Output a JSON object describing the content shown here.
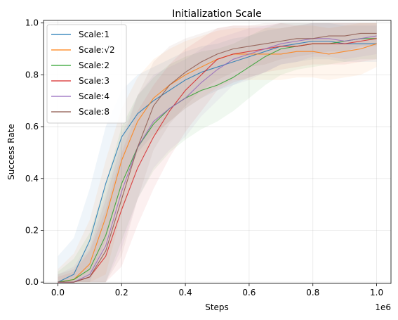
{
  "chart_data": {
    "type": "line",
    "title": "Initialization Scale",
    "xlabel": "Steps",
    "ylabel": "Success Rate",
    "x_offset_label": "1e6",
    "xlim": [
      -0.045,
      1.045
    ],
    "ylim": [
      -0.005,
      1.01
    ],
    "xticks": [
      0.0,
      0.2,
      0.4,
      0.6,
      0.8,
      1.0
    ],
    "xtick_labels": [
      "0.0",
      "0.2",
      "0.4",
      "0.6",
      "0.8",
      "1.0"
    ],
    "yticks": [
      0.0,
      0.2,
      0.4,
      0.6,
      0.8,
      1.0
    ],
    "ytick_labels": [
      "0.0",
      "0.2",
      "0.4",
      "0.6",
      "0.8",
      "1.0"
    ],
    "grid": true,
    "legend_position": "upper-left",
    "x": [
      0.0,
      0.05,
      0.1,
      0.15,
      0.2,
      0.25,
      0.3,
      0.35,
      0.4,
      0.45,
      0.5,
      0.55,
      0.6,
      0.65,
      0.7,
      0.75,
      0.8,
      0.85,
      0.9,
      0.95,
      1.0
    ],
    "series": [
      {
        "name": "Scale:1",
        "color": "#1f77b4",
        "values": [
          0.0,
          0.03,
          0.16,
          0.38,
          0.56,
          0.65,
          0.7,
          0.74,
          0.78,
          0.81,
          0.83,
          0.85,
          0.87,
          0.89,
          0.91,
          0.92,
          0.93,
          0.93,
          0.92,
          0.92,
          0.92
        ],
        "band": [
          0.1,
          0.14,
          0.2,
          0.22,
          0.18,
          0.15,
          0.13,
          0.12,
          0.11,
          0.1,
          0.09,
          0.09,
          0.08,
          0.08,
          0.07,
          0.07,
          0.07,
          0.07,
          0.07,
          0.07,
          0.07
        ]
      },
      {
        "name": "Scale:√2",
        "color": "#ff7f0e",
        "values": [
          0.0,
          0.01,
          0.07,
          0.25,
          0.47,
          0.62,
          0.71,
          0.76,
          0.8,
          0.83,
          0.86,
          0.88,
          0.88,
          0.88,
          0.88,
          0.89,
          0.89,
          0.88,
          0.89,
          0.9,
          0.92
        ],
        "band": [
          0.05,
          0.1,
          0.17,
          0.22,
          0.2,
          0.17,
          0.15,
          0.14,
          0.13,
          0.12,
          0.11,
          0.1,
          0.1,
          0.1,
          0.1,
          0.1,
          0.1,
          0.1,
          0.1,
          0.1,
          0.09
        ]
      },
      {
        "name": "Scale:2",
        "color": "#2ca02c",
        "values": [
          0.0,
          0.01,
          0.05,
          0.18,
          0.38,
          0.52,
          0.61,
          0.67,
          0.71,
          0.74,
          0.76,
          0.79,
          0.83,
          0.87,
          0.9,
          0.91,
          0.92,
          0.92,
          0.93,
          0.94,
          0.94
        ],
        "band": [
          0.04,
          0.08,
          0.14,
          0.2,
          0.22,
          0.2,
          0.18,
          0.17,
          0.16,
          0.15,
          0.14,
          0.13,
          0.12,
          0.11,
          0.1,
          0.09,
          0.09,
          0.08,
          0.08,
          0.08,
          0.08
        ]
      },
      {
        "name": "Scale:3",
        "color": "#d62728",
        "values": [
          0.0,
          0.0,
          0.02,
          0.1,
          0.28,
          0.44,
          0.56,
          0.66,
          0.74,
          0.8,
          0.86,
          0.88,
          0.89,
          0.9,
          0.91,
          0.91,
          0.92,
          0.92,
          0.92,
          0.93,
          0.94
        ],
        "band": [
          0.02,
          0.04,
          0.1,
          0.18,
          0.22,
          0.22,
          0.2,
          0.18,
          0.16,
          0.14,
          0.12,
          0.11,
          0.1,
          0.09,
          0.09,
          0.08,
          0.08,
          0.08,
          0.08,
          0.08,
          0.08
        ]
      },
      {
        "name": "Scale:4",
        "color": "#9467bd",
        "values": [
          0.0,
          0.0,
          0.03,
          0.14,
          0.35,
          0.52,
          0.62,
          0.67,
          0.71,
          0.77,
          0.82,
          0.86,
          0.88,
          0.9,
          0.92,
          0.93,
          0.94,
          0.94,
          0.93,
          0.94,
          0.95
        ],
        "band": [
          0.03,
          0.06,
          0.12,
          0.2,
          0.22,
          0.2,
          0.18,
          0.16,
          0.15,
          0.13,
          0.12,
          0.1,
          0.1,
          0.09,
          0.08,
          0.08,
          0.07,
          0.07,
          0.07,
          0.07,
          0.07
        ]
      },
      {
        "name": "Scale:8",
        "color": "#8c564b",
        "values": [
          0.0,
          0.0,
          0.02,
          0.12,
          0.32,
          0.52,
          0.68,
          0.76,
          0.81,
          0.85,
          0.88,
          0.9,
          0.91,
          0.92,
          0.93,
          0.94,
          0.94,
          0.95,
          0.95,
          0.96,
          0.96
        ],
        "band": [
          0.03,
          0.05,
          0.11,
          0.2,
          0.22,
          0.2,
          0.17,
          0.15,
          0.13,
          0.11,
          0.1,
          0.09,
          0.08,
          0.08,
          0.07,
          0.07,
          0.06,
          0.06,
          0.06,
          0.05,
          0.05
        ]
      }
    ]
  }
}
